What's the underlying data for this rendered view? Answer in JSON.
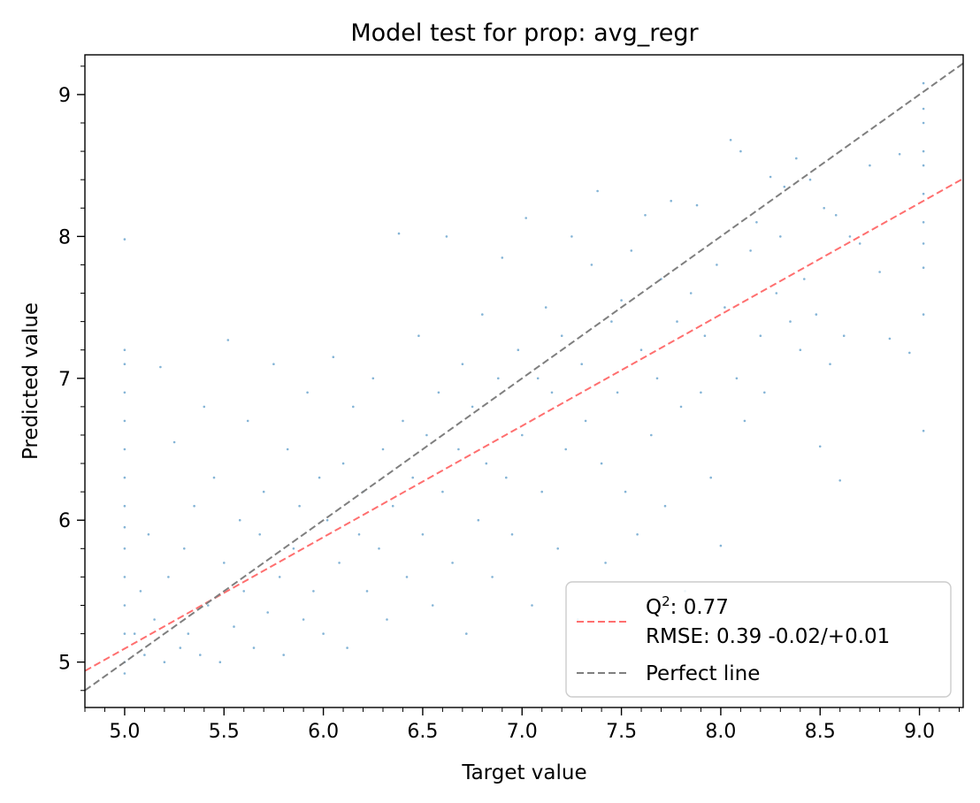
{
  "chart_data": {
    "type": "scatter",
    "title": "Model test for prop: avg_regr",
    "xlabel": "Target value",
    "ylabel": "Predicted value",
    "xlim": [
      4.8,
      9.22
    ],
    "ylim": [
      4.68,
      9.28
    ],
    "xticks": [
      "5.0",
      "5.5",
      "6.0",
      "6.5",
      "7.0",
      "7.5",
      "8.0",
      "8.5",
      "9.0"
    ],
    "yticks": [
      "5",
      "6",
      "7",
      "8",
      "9"
    ],
    "grid": false,
    "legend_position": "lower-right",
    "colors": {
      "points": "#1f77b4",
      "fit_line": "#ff6f6f",
      "perfect_line": "#7f7f7f"
    },
    "legend": {
      "q2_label": "Q",
      "q2_sup": "2",
      "q2_value": ": 0.77",
      "rmse_text": "RMSE: 0.39 -0.02/+0.01",
      "perfect_label": "Perfect line"
    },
    "fit_line": {
      "slope": 0.785,
      "intercept": 1.17
    },
    "perfect_line": {
      "slope": 1,
      "intercept": 0
    },
    "points": [
      [
        5.0,
        7.98
      ],
      [
        5.0,
        7.2
      ],
      [
        5.0,
        7.1
      ],
      [
        5.0,
        6.9
      ],
      [
        5.0,
        6.7
      ],
      [
        5.0,
        6.5
      ],
      [
        5.0,
        6.3
      ],
      [
        5.0,
        6.1
      ],
      [
        5.0,
        5.95
      ],
      [
        5.0,
        5.8
      ],
      [
        5.0,
        5.6
      ],
      [
        5.0,
        5.4
      ],
      [
        5.0,
        5.2
      ],
      [
        5.0,
        5.0
      ],
      [
        5.0,
        4.92
      ],
      [
        5.05,
        5.2
      ],
      [
        5.08,
        5.5
      ],
      [
        5.1,
        5.05
      ],
      [
        5.12,
        5.9
      ],
      [
        5.15,
        5.3
      ],
      [
        5.18,
        7.08
      ],
      [
        5.2,
        5.0
      ],
      [
        5.22,
        5.6
      ],
      [
        5.25,
        6.55
      ],
      [
        5.28,
        5.1
      ],
      [
        5.3,
        5.8
      ],
      [
        5.32,
        5.2
      ],
      [
        5.35,
        6.1
      ],
      [
        5.38,
        5.05
      ],
      [
        5.4,
        6.8
      ],
      [
        5.42,
        5.4
      ],
      [
        5.45,
        6.3
      ],
      [
        5.48,
        5.0
      ],
      [
        5.5,
        5.7
      ],
      [
        5.52,
        7.27
      ],
      [
        5.55,
        5.25
      ],
      [
        5.58,
        6.0
      ],
      [
        5.6,
        5.5
      ],
      [
        5.62,
        6.7
      ],
      [
        5.65,
        5.1
      ],
      [
        5.68,
        5.9
      ],
      [
        5.7,
        6.2
      ],
      [
        5.72,
        5.35
      ],
      [
        5.75,
        7.1
      ],
      [
        5.78,
        5.6
      ],
      [
        5.8,
        5.05
      ],
      [
        5.82,
        6.5
      ],
      [
        5.85,
        5.8
      ],
      [
        5.88,
        6.1
      ],
      [
        5.9,
        5.3
      ],
      [
        5.92,
        6.9
      ],
      [
        5.95,
        5.5
      ],
      [
        5.98,
        6.3
      ],
      [
        6.0,
        5.2
      ],
      [
        6.02,
        6.0
      ],
      [
        6.05,
        7.15
      ],
      [
        6.08,
        5.7
      ],
      [
        6.1,
        6.4
      ],
      [
        6.12,
        5.1
      ],
      [
        6.15,
        6.8
      ],
      [
        6.18,
        5.9
      ],
      [
        6.2,
        6.2
      ],
      [
        6.22,
        5.5
      ],
      [
        6.25,
        7.0
      ],
      [
        6.28,
        5.8
      ],
      [
        6.3,
        6.5
      ],
      [
        6.32,
        5.3
      ],
      [
        6.35,
        6.1
      ],
      [
        6.38,
        8.02
      ],
      [
        6.4,
        6.7
      ],
      [
        6.42,
        5.6
      ],
      [
        6.45,
        6.3
      ],
      [
        6.48,
        7.3
      ],
      [
        6.5,
        5.9
      ],
      [
        6.52,
        6.6
      ],
      [
        6.55,
        5.4
      ],
      [
        6.58,
        6.9
      ],
      [
        6.6,
        6.2
      ],
      [
        6.62,
        8.0
      ],
      [
        6.65,
        5.7
      ],
      [
        6.68,
        6.5
      ],
      [
        6.7,
        7.1
      ],
      [
        6.72,
        5.2
      ],
      [
        6.75,
        6.8
      ],
      [
        6.78,
        6.0
      ],
      [
        6.8,
        7.45
      ],
      [
        6.82,
        6.4
      ],
      [
        6.85,
        5.6
      ],
      [
        6.88,
        7.0
      ],
      [
        6.9,
        7.85
      ],
      [
        6.92,
        6.3
      ],
      [
        6.95,
        5.9
      ],
      [
        6.98,
        7.2
      ],
      [
        7.0,
        6.6
      ],
      [
        7.02,
        8.13
      ],
      [
        7.05,
        5.4
      ],
      [
        7.08,
        7.0
      ],
      [
        7.1,
        6.2
      ],
      [
        7.12,
        7.5
      ],
      [
        7.15,
        6.9
      ],
      [
        7.18,
        5.8
      ],
      [
        7.2,
        7.3
      ],
      [
        7.22,
        6.5
      ],
      [
        7.25,
        8.0
      ],
      [
        7.28,
        5.3
      ],
      [
        7.3,
        7.1
      ],
      [
        7.32,
        6.7
      ],
      [
        7.35,
        7.8
      ],
      [
        7.38,
        8.32
      ],
      [
        7.4,
        6.4
      ],
      [
        7.42,
        5.7
      ],
      [
        7.45,
        7.4
      ],
      [
        7.48,
        6.9
      ],
      [
        7.5,
        7.55
      ],
      [
        7.52,
        6.2
      ],
      [
        7.55,
        7.9
      ],
      [
        7.58,
        5.9
      ],
      [
        7.6,
        7.2
      ],
      [
        7.62,
        8.15
      ],
      [
        7.65,
        6.6
      ],
      [
        7.68,
        7.0
      ],
      [
        7.7,
        7.7
      ],
      [
        7.72,
        6.1
      ],
      [
        7.75,
        8.25
      ],
      [
        7.78,
        7.4
      ],
      [
        7.8,
        6.8
      ],
      [
        7.82,
        5.5
      ],
      [
        7.85,
        7.6
      ],
      [
        7.88,
        8.22
      ],
      [
        7.9,
        6.9
      ],
      [
        7.92,
        7.3
      ],
      [
        7.95,
        6.3
      ],
      [
        7.98,
        7.8
      ],
      [
        8.0,
        5.82
      ],
      [
        8.02,
        7.5
      ],
      [
        8.05,
        8.68
      ],
      [
        8.08,
        7.0
      ],
      [
        8.1,
        8.6
      ],
      [
        8.12,
        6.7
      ],
      [
        8.15,
        7.9
      ],
      [
        8.18,
        8.1
      ],
      [
        8.2,
        7.3
      ],
      [
        8.22,
        6.9
      ],
      [
        8.25,
        8.42
      ],
      [
        8.28,
        7.6
      ],
      [
        8.3,
        8.0
      ],
      [
        8.32,
        8.35
      ],
      [
        8.35,
        7.4
      ],
      [
        8.38,
        8.55
      ],
      [
        8.4,
        7.2
      ],
      [
        8.42,
        7.7
      ],
      [
        8.45,
        8.4
      ],
      [
        8.48,
        7.45
      ],
      [
        8.5,
        6.52
      ],
      [
        8.52,
        8.2
      ],
      [
        8.55,
        7.1
      ],
      [
        8.58,
        8.15
      ],
      [
        8.6,
        6.28
      ],
      [
        8.62,
        7.3
      ],
      [
        8.65,
        8.0
      ],
      [
        8.7,
        7.95
      ],
      [
        8.75,
        8.5
      ],
      [
        8.8,
        7.75
      ],
      [
        8.85,
        7.28
      ],
      [
        8.9,
        8.58
      ],
      [
        8.95,
        7.18
      ],
      [
        9.02,
        9.08
      ],
      [
        9.02,
        8.9
      ],
      [
        9.02,
        8.8
      ],
      [
        9.02,
        8.6
      ],
      [
        9.02,
        8.5
      ],
      [
        9.02,
        8.3
      ],
      [
        9.02,
        8.1
      ],
      [
        9.02,
        7.95
      ],
      [
        9.02,
        7.78
      ],
      [
        9.02,
        7.45
      ],
      [
        9.02,
        6.63
      ]
    ]
  }
}
